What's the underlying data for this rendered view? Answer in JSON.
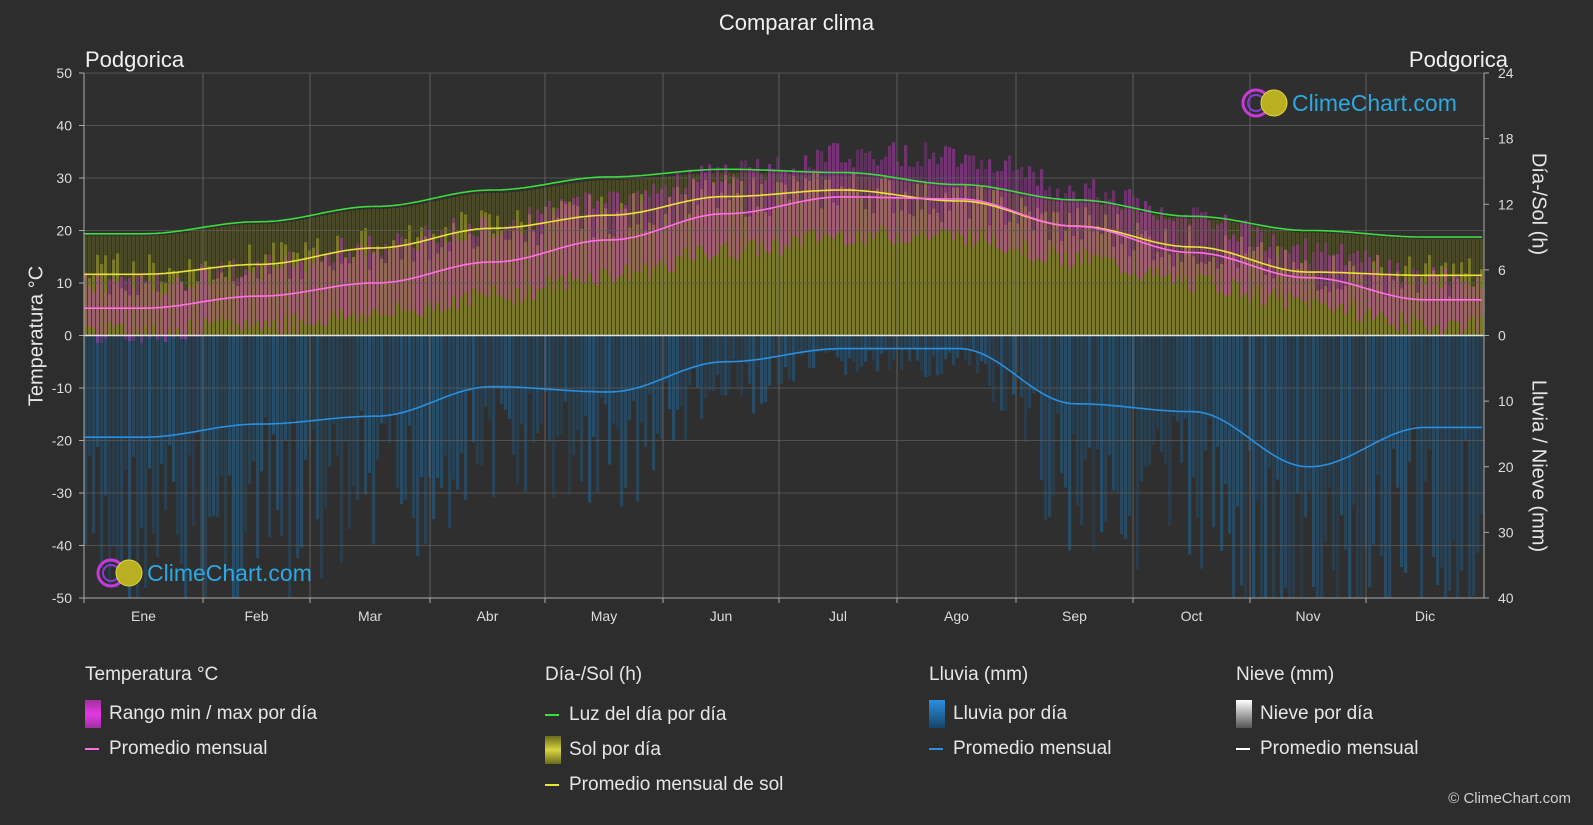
{
  "title": "Comparar clima",
  "city_left": "Podgorica",
  "city_right": "Podgorica",
  "logo_text": "ClimeChart.com",
  "copyright": "© ClimeChart.com",
  "axes": {
    "left_label": "Temperatura °C",
    "right_top_label": "Día-/Sol (h)",
    "right_bottom_label": "Lluvia / Nieve (mm)",
    "left_ticks": [
      "50",
      "40",
      "30",
      "20",
      "10",
      "0",
      "-10",
      "-20",
      "-30",
      "-40",
      "-50"
    ],
    "right_top_ticks": [
      "24",
      "18",
      "12",
      "6",
      "0"
    ],
    "right_bottom_ticks": [
      "10",
      "20",
      "30",
      "40"
    ]
  },
  "legend": {
    "temperature": {
      "head": "Temperatura °C",
      "range": "Rango min / max por día",
      "avg": "Promedio mensual"
    },
    "sun": {
      "head": "Día-/Sol (h)",
      "daylight": "Luz del día por día",
      "sun": "Sol por día",
      "avg": "Promedio mensual de sol"
    },
    "rain": {
      "head": "Lluvia (mm)",
      "day": "Lluvia por día",
      "avg": "Promedio mensual"
    },
    "snow": {
      "head": "Nieve (mm)",
      "day": "Nieve por día",
      "avg": "Promedio mensual"
    }
  },
  "colors": {
    "background": "#2d2d2d",
    "daylight": "#3ddc3d",
    "sun_avg": "#e8e23a",
    "sun_fill": "#9a9a2a",
    "temp_avg": "#ff6ee6",
    "temp_range": "#d23ad2",
    "rain_avg": "#2a8fe0",
    "rain_fill": "#1f6aa0",
    "snow_avg": "#ffffff"
  },
  "chart_data": {
    "type": "line",
    "categories": [
      "Ene",
      "Feb",
      "Mar",
      "Abr",
      "May",
      "Jun",
      "Jul",
      "Ago",
      "Sep",
      "Oct",
      "Nov",
      "Dic"
    ],
    "temp_ylim": [
      -50,
      50
    ],
    "sun_ylim": [
      0,
      24
    ],
    "rain_ylim": [
      0,
      40
    ],
    "series": [
      {
        "name": "Luz del día por día",
        "axis": "sun",
        "values": [
          9.3,
          10.4,
          11.8,
          13.3,
          14.5,
          15.2,
          14.9,
          13.8,
          12.4,
          10.9,
          9.6,
          9.0
        ]
      },
      {
        "name": "Promedio mensual de sol",
        "axis": "sun",
        "values": [
          5.6,
          6.5,
          8.0,
          9.8,
          11.0,
          12.7,
          13.3,
          12.3,
          10.0,
          8.1,
          5.8,
          5.5
        ]
      },
      {
        "name": "Promedio mensual",
        "axis": "temp",
        "values": [
          5.2,
          7.5,
          10.0,
          14.0,
          18.2,
          23.2,
          26.4,
          26.0,
          20.8,
          15.8,
          11.0,
          6.8
        ]
      },
      {
        "name": "Promedio mensual",
        "axis": "rain",
        "values": [
          15.5,
          13.5,
          12.3,
          7.8,
          8.6,
          4.0,
          2.0,
          2.0,
          10.4,
          11.6,
          20.0,
          14.0
        ]
      }
    ],
    "temp_range": {
      "min": [
        0.5,
        2.0,
        4.0,
        7.5,
        11.5,
        16.0,
        19.0,
        19.0,
        14.5,
        10.0,
        6.0,
        2.0
      ],
      "max": [
        10.0,
        13.0,
        17.0,
        21.0,
        26.0,
        31.0,
        34.5,
        34.5,
        28.0,
        22.0,
        16.0,
        11.0
      ]
    }
  }
}
